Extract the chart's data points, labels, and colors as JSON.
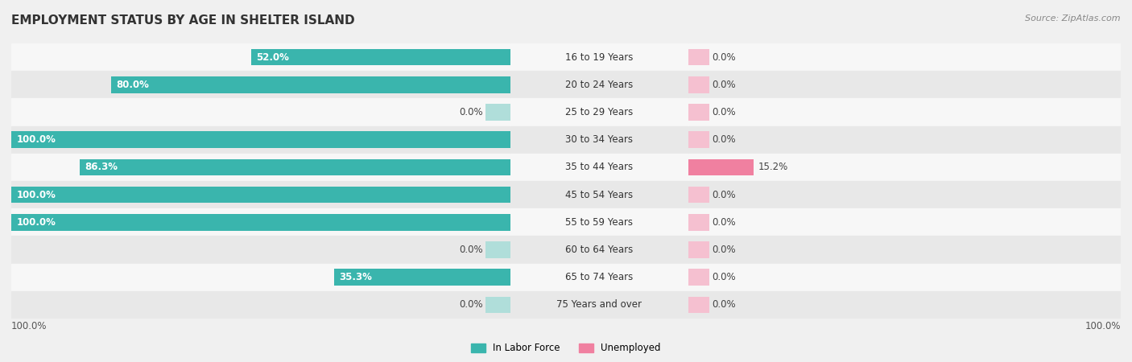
{
  "title": "EMPLOYMENT STATUS BY AGE IN SHELTER ISLAND",
  "source": "Source: ZipAtlas.com",
  "age_groups": [
    "16 to 19 Years",
    "20 to 24 Years",
    "25 to 29 Years",
    "30 to 34 Years",
    "35 to 44 Years",
    "45 to 54 Years",
    "55 to 59 Years",
    "60 to 64 Years",
    "65 to 74 Years",
    "75 Years and over"
  ],
  "in_labor_force": [
    52.0,
    80.0,
    0.0,
    100.0,
    86.3,
    100.0,
    100.0,
    0.0,
    35.3,
    0.0
  ],
  "unemployed": [
    0.0,
    0.0,
    0.0,
    0.0,
    15.2,
    0.0,
    0.0,
    0.0,
    0.0,
    0.0
  ],
  "labor_color": "#3ab5ad",
  "unemployed_color": "#f080a0",
  "labor_color_light": "#b0deda",
  "unemployed_color_light": "#f5c0d0",
  "bg_color": "#f0f0f0",
  "row_bg_light": "#f7f7f7",
  "row_bg_dark": "#e8e8e8",
  "bar_height": 0.6,
  "stub_value": 5,
  "legend_labor": "In Labor Force",
  "legend_unemployed": "Unemployed",
  "title_fontsize": 11,
  "label_fontsize": 8.5,
  "age_label_fontsize": 8.5,
  "source_fontsize": 8,
  "axis_label_fontsize": 8.5
}
